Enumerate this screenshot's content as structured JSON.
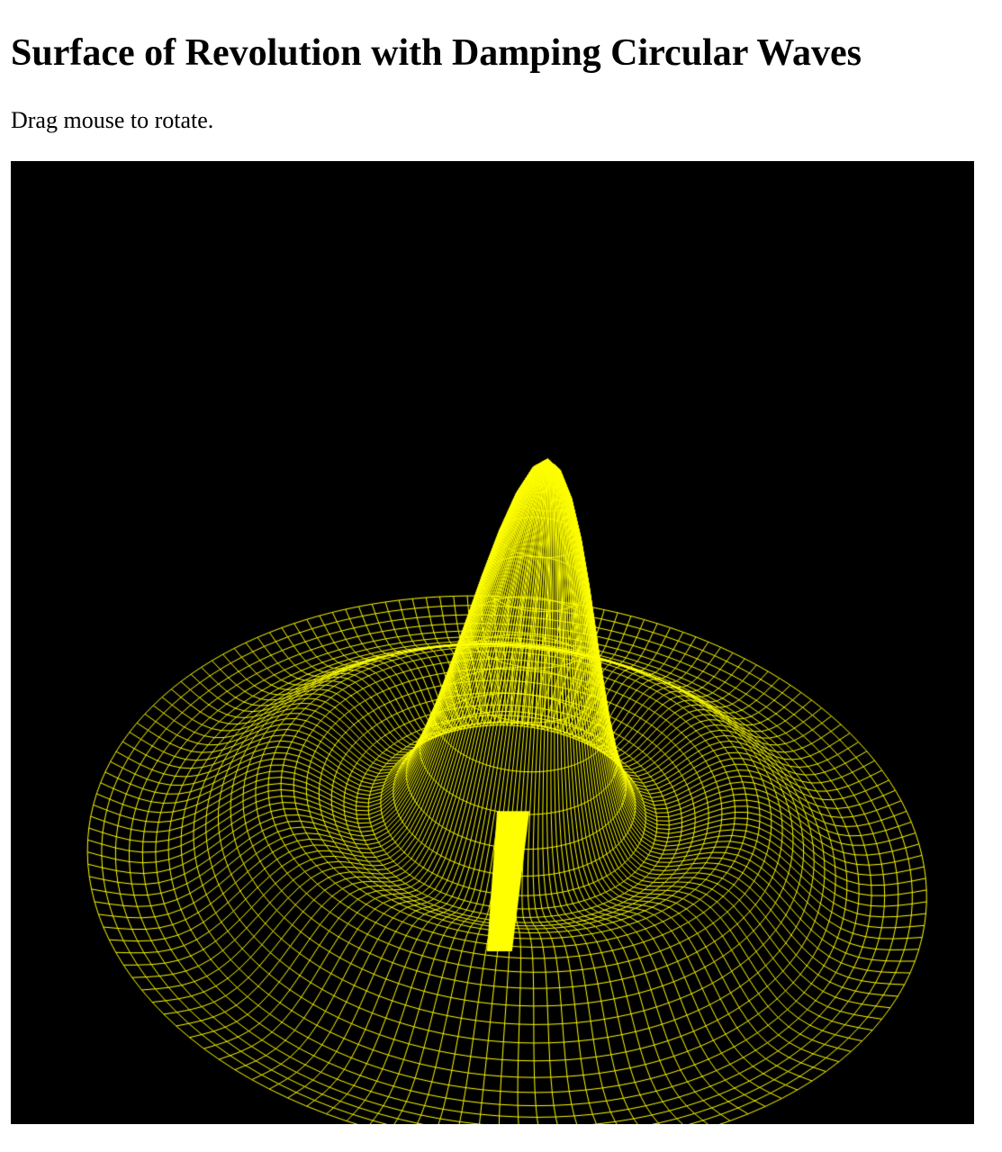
{
  "page": {
    "title": "Surface of Revolution with Damping Circular Waves",
    "instructions": "Drag mouse to rotate."
  },
  "scene": {
    "background_color": "#000000",
    "wire_color": "#ffff00",
    "render_mode": "wireframe",
    "surface": "damped circular wave surface of revolution",
    "rotation_x_deg": -38,
    "rotation_y_deg": -18,
    "rotation_z_deg": 8
  }
}
